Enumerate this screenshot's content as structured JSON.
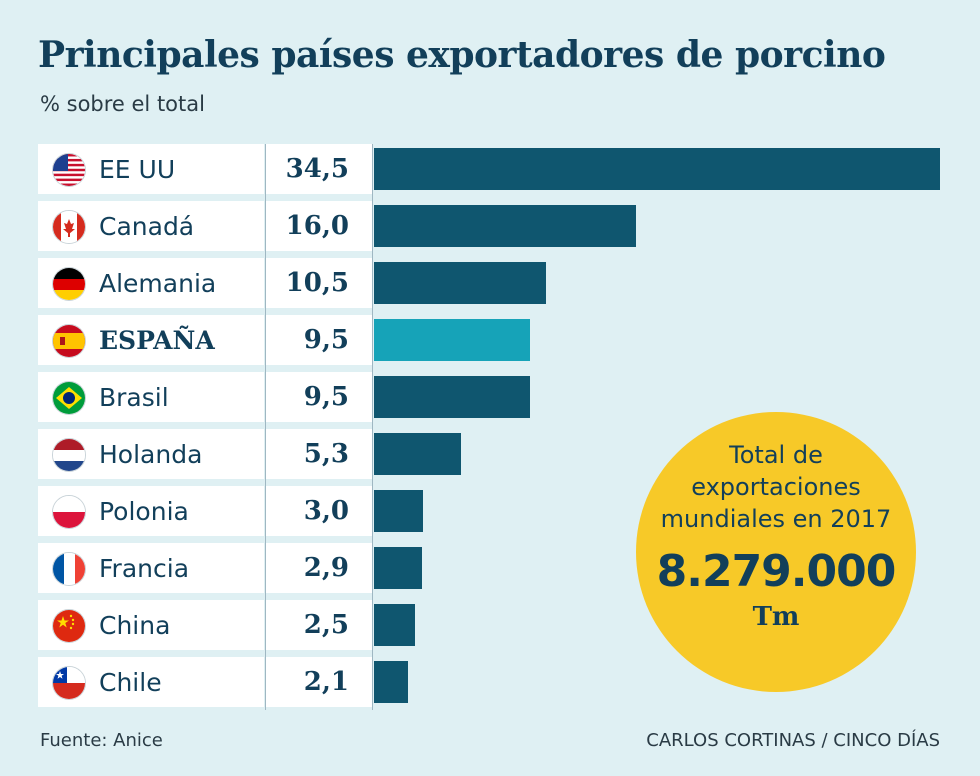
{
  "title": "Principales países exportadores de porcino",
  "subtitle": "% sobre el total",
  "source": "Fuente: Anice",
  "credit": "CARLOS CORTINAS / CINCO DÍAS",
  "colors": {
    "bar": "#0f566f",
    "highlight": "#16a3b8",
    "circle": "#f7c928",
    "background": "#dff0f3"
  },
  "callout": {
    "line1": "Total de",
    "line2": "exportaciones",
    "line3": "mundiales en 2017",
    "value": "8.279.000",
    "unit": "Tm"
  },
  "rows": [
    {
      "country": "EE UU",
      "value_label": "34,5",
      "flag": "usa-flag-icon"
    },
    {
      "country": "Canadá",
      "value_label": "16,0",
      "flag": "canada-flag-icon"
    },
    {
      "country": "Alemania",
      "value_label": "10,5",
      "flag": "germany-flag-icon"
    },
    {
      "country": "ESPAÑA",
      "value_label": "9,5",
      "flag": "spain-flag-icon"
    },
    {
      "country": "Brasil",
      "value_label": "9,5",
      "flag": "brazil-flag-icon"
    },
    {
      "country": "Holanda",
      "value_label": "5,3",
      "flag": "netherlands-flag-icon"
    },
    {
      "country": "Polonia",
      "value_label": "3,0",
      "flag": "poland-flag-icon"
    },
    {
      "country": "Francia",
      "value_label": "2,9",
      "flag": "france-flag-icon"
    },
    {
      "country": "China",
      "value_label": "2,5",
      "flag": "china-flag-icon"
    },
    {
      "country": "Chile",
      "value_label": "2,1",
      "flag": "chile-flag-icon"
    }
  ],
  "chart_data": {
    "type": "bar",
    "orientation": "horizontal",
    "title": "Principales países exportadores de porcino",
    "subtitle": "% sobre el total",
    "categories": [
      "EE UU",
      "Canadá",
      "Alemania",
      "ESPAÑA",
      "Brasil",
      "Holanda",
      "Polonia",
      "Francia",
      "China",
      "Chile"
    ],
    "values": [
      34.5,
      16.0,
      10.5,
      9.5,
      9.5,
      5.3,
      3.0,
      2.9,
      2.5,
      2.1
    ],
    "highlight": "ESPAÑA",
    "xlim": [
      0,
      34.5
    ],
    "grid": false,
    "legend": "none"
  }
}
